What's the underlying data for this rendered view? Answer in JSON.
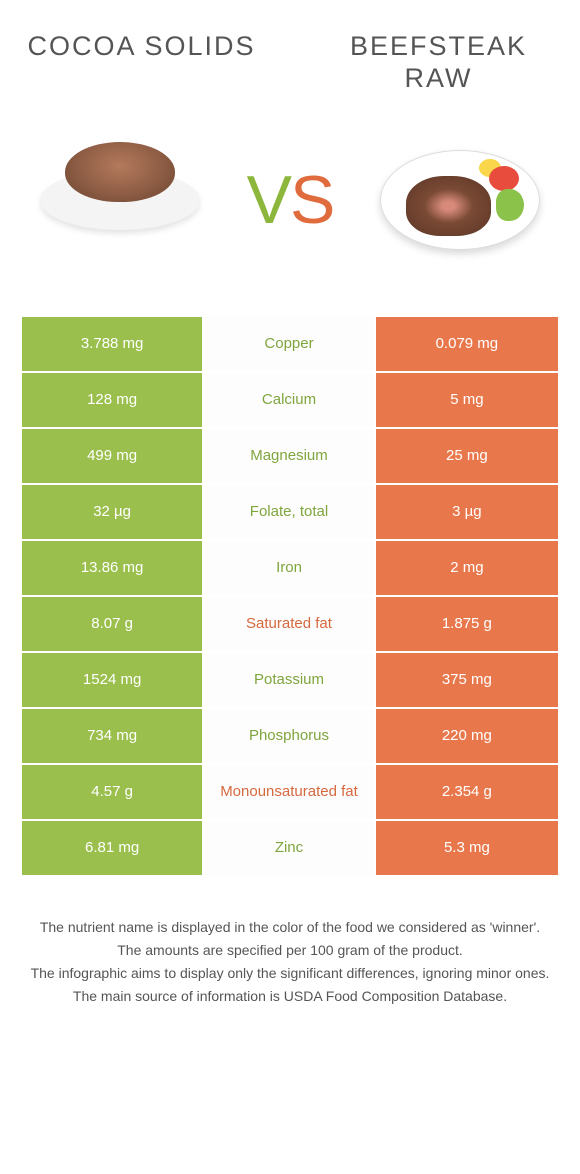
{
  "colors": {
    "green": "#9abf4c",
    "orange": "#e8784c",
    "mid_green_text": "#7fa53d",
    "mid_orange_text": "#d6683e",
    "title_text": "#555555"
  },
  "left_food": {
    "title": "COCOA SOLIDS"
  },
  "right_food": {
    "title": "BEEFSTEAK RAW"
  },
  "vs": {
    "v": "V",
    "s": "S"
  },
  "rows": [
    {
      "left": "3.788 mg",
      "name": "Copper",
      "right": "0.079 mg",
      "winner": "left"
    },
    {
      "left": "128 mg",
      "name": "Calcium",
      "right": "5 mg",
      "winner": "left"
    },
    {
      "left": "499 mg",
      "name": "Magnesium",
      "right": "25 mg",
      "winner": "left"
    },
    {
      "left": "32 µg",
      "name": "Folate, total",
      "right": "3 µg",
      "winner": "left"
    },
    {
      "left": "13.86 mg",
      "name": "Iron",
      "right": "2 mg",
      "winner": "left"
    },
    {
      "left": "8.07 g",
      "name": "Saturated fat",
      "right": "1.875 g",
      "winner": "right"
    },
    {
      "left": "1524 mg",
      "name": "Potassium",
      "right": "375 mg",
      "winner": "left"
    },
    {
      "left": "734 mg",
      "name": "Phosphorus",
      "right": "220 mg",
      "winner": "left"
    },
    {
      "left": "4.57 g",
      "name": "Monounsaturated fat",
      "right": "2.354 g",
      "winner": "right"
    },
    {
      "left": "6.81 mg",
      "name": "Zinc",
      "right": "5.3 mg",
      "winner": "left"
    }
  ],
  "footnotes": [
    "The nutrient name is displayed in the color of the food we considered as 'winner'.",
    "The amounts are specified per 100 gram of the product.",
    "The infographic aims to display only the significant differences, ignoring minor ones.",
    "The main source of information is USDA Food Composition Database."
  ]
}
